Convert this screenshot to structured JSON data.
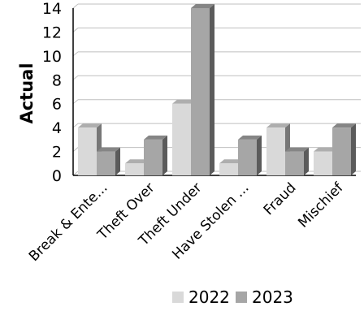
{
  "chart_data": {
    "type": "bar",
    "ylabel": "Actual",
    "xlabel": "",
    "ylim": [
      0,
      14
    ],
    "yticks": [
      "0",
      "2",
      "4",
      "6",
      "8",
      "10",
      "12",
      "14"
    ],
    "categories": [
      "Break & Ente...",
      "Theft Over",
      "Theft Under",
      "Have Stolen ...",
      "Fraud",
      "Mischief"
    ],
    "series": [
      {
        "name": "2022",
        "values": [
          4,
          1,
          6,
          1,
          4,
          2
        ],
        "color": "#d9d9d9"
      },
      {
        "name": "2023",
        "values": [
          2,
          3,
          14,
          3,
          2,
          4
        ],
        "color": "#a6a6a6"
      }
    ],
    "grid": true,
    "legend_position": "bottom"
  }
}
